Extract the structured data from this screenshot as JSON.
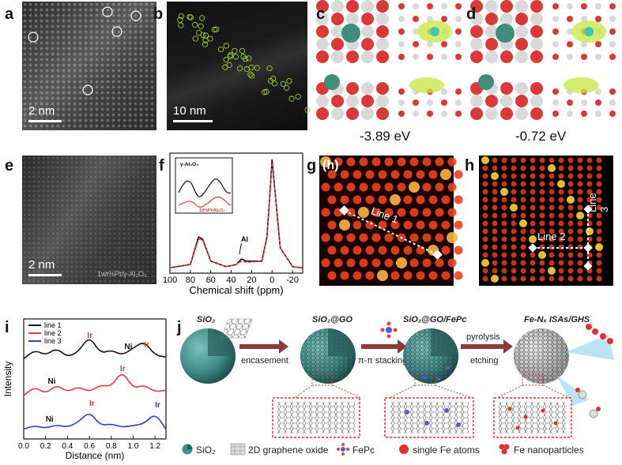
{
  "panels": {
    "a": {
      "label": "a",
      "scale": "2 nm"
    },
    "b": {
      "label": "b",
      "scale": "10 nm"
    },
    "c": {
      "label": "c",
      "energy": "-3.89 eV"
    },
    "d": {
      "label": "d",
      "energy": "-0.72 eV"
    },
    "e": {
      "label": "e",
      "scale": "2 nm",
      "sample": "1wt%Pt/γ-Al₂O₃"
    },
    "f": {
      "label": "f",
      "xlabel": "Chemical shift (ppm)",
      "xticks": [
        "100",
        "80",
        "60",
        "40",
        "20",
        "0",
        "-20"
      ],
      "annotation": "Al",
      "inset": {
        "top": "γ-Al₂O₃",
        "bottom": "10%Pt/Al₂O₃"
      }
    },
    "g": {
      "label": "g",
      "tag": "(h)",
      "line": "Line 1"
    },
    "h": {
      "label": "h",
      "line2": "Line 2",
      "line3": "Line 3"
    },
    "i": {
      "label": "i",
      "ylabel": "Intensity",
      "xlabel": "Distance (nm)",
      "xticks": [
        "0.0",
        "0.2",
        "0.4",
        "0.6",
        "0.8",
        "1.0",
        "1.2"
      ],
      "legend": [
        "line 1",
        "line 2",
        "line 3"
      ],
      "peak_labels": {
        "ni": "Ni",
        "ir": "Ir"
      }
    },
    "j": {
      "label": "j",
      "stages": [
        "SiO₂",
        "SiO₂@GO",
        "SiO₂@GO/FePc",
        "Fe-Nₓ ISAs/GHS"
      ],
      "arrows": [
        "encasement",
        "π-π stacking",
        "pyrolysis",
        "etching"
      ]
    }
  },
  "legend_bottom": [
    {
      "icon": "sio2-sphere-icon",
      "text": "SiO₂"
    },
    {
      "icon": "graphene-oxide-icon",
      "text": "2D graphene oxide"
    },
    {
      "icon": "fepc-molecule-icon",
      "text": "FePc"
    },
    {
      "icon": "single-fe-atom-icon",
      "text": "single Fe  atoms"
    },
    {
      "icon": "fe-nanoparticle-icon",
      "text": "Fe nanoparticles"
    }
  ],
  "colors": {
    "black": "#111111",
    "red": "#e23b3b",
    "blue": "#2a3fd6",
    "teal": "#3f8d8a",
    "arrow": "#8b3b3b"
  },
  "chart_data": [
    {
      "type": "line",
      "panel": "f",
      "xlabel": "Chemical shift (ppm)",
      "xlim": [
        100,
        -30
      ],
      "series": [
        {
          "x": [
            100,
            80,
            72,
            68,
            60,
            45,
            35,
            30,
            25,
            10,
            5,
            2,
            0,
            -3,
            -8,
            -20,
            -30
          ],
          "y": [
            0.02,
            0.05,
            0.3,
            0.28,
            0.08,
            0.03,
            0.05,
            0.1,
            0.08,
            0.08,
            0.3,
            0.7,
            1.0,
            0.7,
            0.2,
            0.03,
            0.02
          ]
        },
        {
          "x": [
            100,
            80,
            72,
            68,
            60,
            45,
            35,
            30,
            25,
            10,
            5,
            2,
            0,
            -3,
            -8,
            -20,
            -30
          ],
          "y": [
            0.02,
            0.05,
            0.28,
            0.27,
            0.08,
            0.03,
            0.05,
            0.08,
            0.07,
            0.08,
            0.3,
            0.7,
            0.97,
            0.7,
            0.2,
            0.03,
            0.02
          ]
        }
      ]
    },
    {
      "type": "line",
      "panel": "i",
      "xlabel": "Distance (nm)",
      "ylabel": "Intensity",
      "xlim": [
        0,
        1.3
      ],
      "series": [
        {
          "name": "line 1",
          "x": [
            0,
            0.1,
            0.2,
            0.3,
            0.4,
            0.5,
            0.6,
            0.7,
            0.8,
            0.9,
            1.0,
            1.1,
            1.2,
            1.3
          ],
          "y": [
            0.3,
            0.55,
            0.4,
            0.6,
            0.35,
            0.5,
            0.95,
            0.45,
            0.55,
            0.4,
            0.6,
            0.8,
            0.4,
            0.35
          ]
        },
        {
          "name": "line 2",
          "x": [
            0,
            0.1,
            0.2,
            0.3,
            0.4,
            0.5,
            0.6,
            0.7,
            0.8,
            0.9,
            1.0,
            1.1,
            1.2,
            1.3
          ],
          "y": [
            0.2,
            0.45,
            0.25,
            0.5,
            0.3,
            0.45,
            0.3,
            0.5,
            0.45,
            0.9,
            0.4,
            0.5,
            0.3,
            0.35
          ]
        },
        {
          "name": "line 3",
          "x": [
            0,
            0.1,
            0.2,
            0.3,
            0.4,
            0.5,
            0.6,
            0.7,
            0.8,
            0.9,
            1.0,
            1.1,
            1.2,
            1.3
          ],
          "y": [
            0.1,
            0.2,
            0.12,
            0.22,
            0.15,
            0.3,
            0.6,
            0.2,
            0.25,
            0.15,
            0.2,
            0.25,
            0.55,
            0.1
          ]
        }
      ]
    }
  ]
}
